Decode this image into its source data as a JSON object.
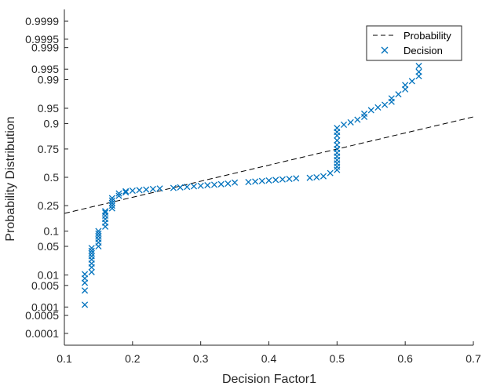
{
  "chart_data": {
    "type": "scatter",
    "xlabel": "Decision Factor1",
    "ylabel": "Probability Distribution",
    "xlim": [
      0.1,
      0.7
    ],
    "x_ticks": [
      "0.1",
      "0.2",
      "0.3",
      "0.4",
      "0.5",
      "0.6",
      "0.7"
    ],
    "y_scale": "normal-probability",
    "y_ticks": [
      "0.0001",
      "0.0005",
      "0.001",
      "0.005",
      "0.01",
      "0.05",
      "0.1",
      "0.25",
      "0.5",
      "0.75",
      "0.9",
      "0.95",
      "0.99",
      "0.995",
      "0.999",
      "0.9995",
      "0.9999"
    ],
    "grid": false,
    "legend_position": "top-right",
    "legend": [
      {
        "label": "Probability",
        "style": "dashed-line",
        "color": "#000000"
      },
      {
        "label": "Decision",
        "style": "x-marker",
        "color": "#0072BD"
      }
    ],
    "series": [
      {
        "name": "Probability",
        "style": "dashed-line",
        "x": [
          0.1,
          0.7
        ],
        "y": [
          0.195,
          0.925
        ]
      },
      {
        "name": "Decision",
        "style": "x-marker",
        "x": [
          0.13,
          0.13,
          0.13,
          0.13,
          0.13,
          0.14,
          0.14,
          0.14,
          0.14,
          0.14,
          0.14,
          0.14,
          0.14,
          0.15,
          0.15,
          0.15,
          0.15,
          0.15,
          0.15,
          0.16,
          0.16,
          0.16,
          0.16,
          0.16,
          0.16,
          0.17,
          0.17,
          0.17,
          0.17,
          0.17,
          0.18,
          0.18,
          0.19,
          0.19,
          0.2,
          0.21,
          0.22,
          0.23,
          0.24,
          0.26,
          0.27,
          0.28,
          0.29,
          0.3,
          0.31,
          0.32,
          0.33,
          0.34,
          0.35,
          0.37,
          0.38,
          0.39,
          0.4,
          0.41,
          0.42,
          0.43,
          0.44,
          0.46,
          0.47,
          0.48,
          0.49,
          0.5,
          0.5,
          0.5,
          0.5,
          0.5,
          0.5,
          0.5,
          0.5,
          0.5,
          0.5,
          0.5,
          0.5,
          0.51,
          0.52,
          0.53,
          0.54,
          0.54,
          0.55,
          0.56,
          0.57,
          0.58,
          0.58,
          0.59,
          0.6,
          0.6,
          0.61,
          0.62,
          0.62,
          0.62
        ],
        "y": [
          0.0012,
          0.0035,
          0.006,
          0.008,
          0.0105,
          0.012,
          0.016,
          0.02,
          0.025,
          0.03,
          0.035,
          0.04,
          0.046,
          0.05,
          0.06,
          0.07,
          0.08,
          0.09,
          0.1,
          0.12,
          0.14,
          0.16,
          0.18,
          0.2,
          0.21,
          0.23,
          0.25,
          0.27,
          0.29,
          0.31,
          0.33,
          0.35,
          0.36,
          0.37,
          0.375,
          0.38,
          0.385,
          0.39,
          0.395,
          0.4,
          0.405,
          0.41,
          0.415,
          0.42,
          0.425,
          0.43,
          0.435,
          0.44,
          0.45,
          0.455,
          0.46,
          0.465,
          0.47,
          0.475,
          0.48,
          0.485,
          0.49,
          0.495,
          0.5,
          0.51,
          0.54,
          0.57,
          0.6,
          0.63,
          0.66,
          0.69,
          0.72,
          0.75,
          0.78,
          0.81,
          0.84,
          0.86,
          0.88,
          0.895,
          0.905,
          0.915,
          0.925,
          0.935,
          0.945,
          0.952,
          0.958,
          0.964,
          0.97,
          0.976,
          0.982,
          0.986,
          0.989,
          0.992,
          0.994,
          0.996
        ]
      }
    ]
  }
}
